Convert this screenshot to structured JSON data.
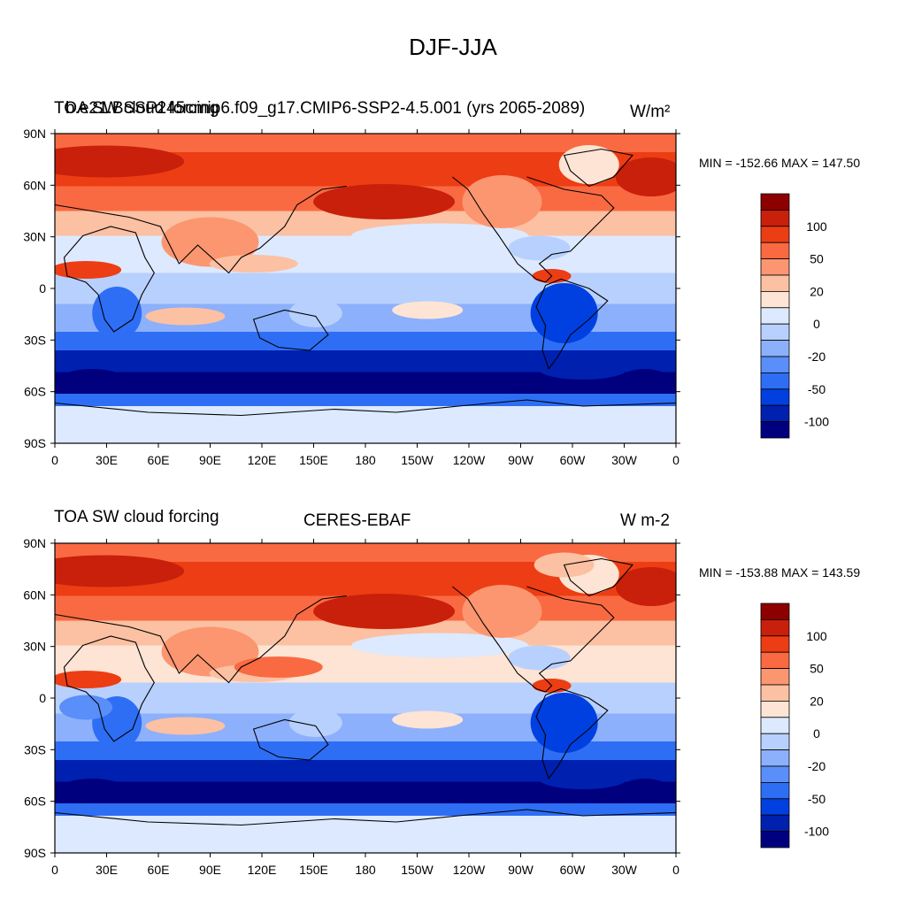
{
  "figure": {
    "title": "DJF-JJA"
  },
  "colors": {
    "levels": [
      "#00007f",
      "#0020b0",
      "#0040e0",
      "#2e6ef5",
      "#5a8ef8",
      "#8cb0fb",
      "#b8d0fd",
      "#dde9fe",
      "#fde4d4",
      "#fcc0a2",
      "#fb9670",
      "#f96a42",
      "#ed3d14",
      "#c8200a",
      "#8c0000"
    ],
    "coast": "#000000",
    "frame": "#000000"
  },
  "colorbar": {
    "labels": [
      "100",
      "50",
      "20",
      "0",
      "-20",
      "-50",
      "-100"
    ]
  },
  "axes": {
    "lat_labels": [
      "90N",
      "60N",
      "30N",
      "0",
      "30S",
      "60S",
      "90S"
    ],
    "lon_labels": [
      "0",
      "30E",
      "60E",
      "90E",
      "120E",
      "150E",
      "180",
      "150W",
      "120W",
      "90W",
      "60W",
      "30W",
      "0"
    ]
  },
  "panels": [
    {
      "left": "TOA SW cloud forcing",
      "center": "b.e21.BSSP245cmip6.f09_g17.CMIP6-SSP2-4.5.001 (yrs 2065-2089)",
      "right": "W/m²",
      "minmax": "MIN = -152.66 MAX = 147.50"
    },
    {
      "left": "TOA SW cloud forcing",
      "center": "CERES-EBAF",
      "right": "W m-2",
      "minmax": "MIN = -153.88 MAX = 143.59"
    }
  ]
}
